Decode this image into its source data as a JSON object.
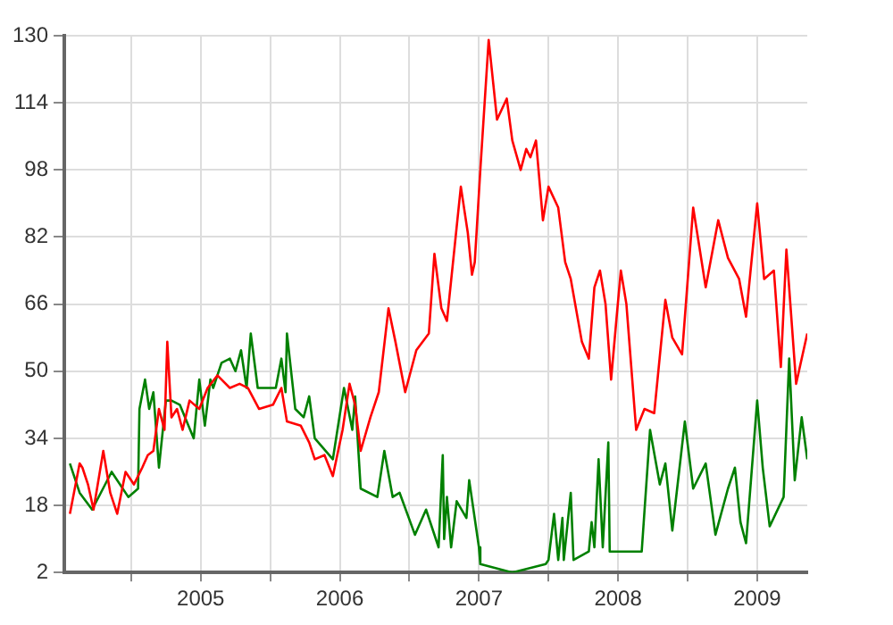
{
  "chart_data": {
    "type": "line",
    "marker": "none",
    "line_style": "solid",
    "grid": true,
    "legend": false,
    "xlim": [
      2004.02,
      2009.36
    ],
    "xticks": [
      {
        "value": 2004.5,
        "label": null
      },
      2005,
      {
        "value": 2005.5,
        "label": null
      },
      2006,
      {
        "value": 2006.5,
        "label": null
      },
      2007,
      {
        "value": 2007.5,
        "label": null
      },
      2008,
      {
        "value": 2008.5,
        "label": null
      },
      2009
    ],
    "ylim": [
      2,
      130
    ],
    "yticks": [
      2,
      18,
      34,
      50,
      66,
      82,
      98,
      114,
      130
    ],
    "series": [
      {
        "color": "#ff0000",
        "x": [
          2004.06,
          2004.13,
          2004.15,
          2004.19,
          2004.23,
          2004.3,
          2004.35,
          2004.4,
          2004.46,
          2004.52,
          2004.58,
          2004.62,
          2004.66,
          2004.7,
          2004.74,
          2004.76,
          2004.79,
          2004.83,
          2004.87,
          2004.92,
          2004.99,
          2005.05,
          2005.12,
          2005.21,
          2005.28,
          2005.34,
          2005.42,
          2005.52,
          2005.58,
          2005.62,
          2005.72,
          2005.78,
          2005.82,
          2005.89,
          2005.95,
          2006.02,
          2006.07,
          2006.11,
          2006.15,
          2006.22,
          2006.28,
          2006.35,
          2006.4,
          2006.47,
          2006.55,
          2006.64,
          2006.68,
          2006.73,
          2006.77,
          2006.87,
          2006.92,
          2006.95,
          2006.97,
          2007.01,
          2007.07,
          2007.13,
          2007.2,
          2007.24,
          2007.3,
          2007.34,
          2007.37,
          2007.41,
          2007.46,
          2007.5,
          2007.57,
          2007.62,
          2007.66,
          2007.74,
          2007.79,
          2007.83,
          2007.87,
          2007.91,
          2007.95,
          2007.99,
          2008.02,
          2008.06,
          2008.13,
          2008.19,
          2008.26,
          2008.34,
          2008.39,
          2008.46,
          2008.54,
          2008.63,
          2008.72,
          2008.79,
          2008.87,
          2008.92,
          2009.0,
          2009.05,
          2009.12,
          2009.17,
          2009.21,
          2009.28,
          2009.36
        ],
        "values": [
          16,
          28,
          27,
          23,
          17,
          31,
          21,
          16,
          26,
          23,
          27,
          30,
          31,
          41,
          36,
          57,
          39,
          41,
          36,
          43,
          41,
          46,
          49,
          46,
          47,
          46,
          41,
          42,
          46,
          38,
          37,
          33,
          29,
          30,
          25,
          36,
          47,
          42,
          31,
          39,
          45,
          65,
          57,
          45,
          55,
          59,
          78,
          65,
          62,
          94,
          83,
          73,
          76,
          98,
          129,
          110,
          115,
          105,
          98,
          103,
          101,
          105,
          86,
          94,
          89,
          76,
          72,
          57,
          53,
          70,
          74,
          66,
          48,
          63,
          74,
          66,
          36,
          41,
          40,
          67,
          58,
          54,
          89,
          70,
          86,
          77,
          72,
          63,
          90,
          72,
          74,
          51,
          79,
          47,
          59
        ]
      },
      {
        "color": "#008000",
        "x": [
          2004.06,
          2004.13,
          2004.22,
          2004.36,
          2004.48,
          2004.55,
          2004.56,
          2004.6,
          2004.63,
          2004.66,
          2004.7,
          2004.75,
          2004.79,
          2004.85,
          2004.95,
          2004.99,
          2005.03,
          2005.07,
          2005.09,
          2005.15,
          2005.21,
          2005.25,
          2005.29,
          2005.33,
          2005.36,
          2005.41,
          2005.48,
          2005.54,
          2005.58,
          2005.61,
          2005.62,
          2005.68,
          2005.74,
          2005.78,
          2005.82,
          2005.95,
          2006.03,
          2006.09,
          2006.11,
          2006.15,
          2006.27,
          2006.32,
          2006.38,
          2006.43,
          2006.54,
          2006.62,
          2006.71,
          2006.74,
          2006.75,
          2006.77,
          2006.8,
          2006.84,
          2006.91,
          2006.93,
          2007.0,
          2007.01,
          2007.24,
          2007.48,
          2007.5,
          2007.54,
          2007.57,
          2007.6,
          2007.61,
          2007.66,
          2007.68,
          2007.79,
          2007.81,
          2007.83,
          2007.86,
          2007.89,
          2007.93,
          2007.94,
          2008.17,
          2008.23,
          2008.3,
          2008.34,
          2008.39,
          2008.48,
          2008.54,
          2008.63,
          2008.7,
          2008.79,
          2008.84,
          2008.88,
          2008.92,
          2009.0,
          2009.04,
          2009.09,
          2009.19,
          2009.23,
          2009.27,
          2009.32,
          2009.36
        ],
        "values": [
          28,
          21,
          17,
          26,
          20,
          22,
          41,
          48,
          41,
          45,
          27,
          43,
          43,
          42,
          34,
          48,
          37,
          48,
          46,
          52,
          53,
          50,
          55,
          46,
          59,
          46,
          46,
          46,
          53,
          45,
          59,
          41,
          39,
          44,
          34,
          29,
          46,
          36,
          44,
          22,
          20,
          31,
          20,
          21,
          11,
          17,
          8,
          30,
          10,
          20,
          8,
          19,
          15,
          24,
          8,
          4,
          2,
          4,
          5,
          16,
          5,
          15,
          5,
          21,
          5,
          7,
          14,
          8,
          29,
          8,
          33,
          7,
          7,
          36,
          23,
          28,
          12,
          38,
          22,
          28,
          11,
          22,
          27,
          14,
          9,
          43,
          27,
          13,
          20,
          53,
          24,
          39,
          29
        ]
      }
    ]
  }
}
